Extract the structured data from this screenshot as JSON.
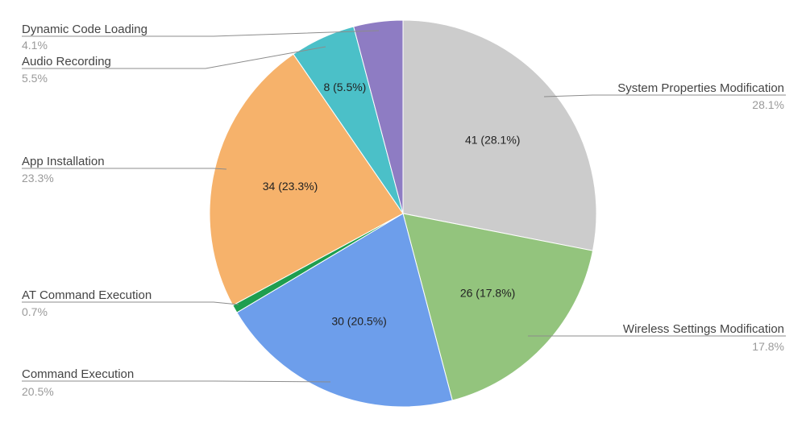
{
  "chart_data": {
    "type": "pie",
    "title": "",
    "slices": [
      {
        "name": "System Properties Modification",
        "value": 41,
        "percent": "28.1%",
        "data_label": "41 (28.1%)",
        "color": "#cccccc"
      },
      {
        "name": "Wireless Settings Modification",
        "value": 26,
        "percent": "17.8%",
        "data_label": "26 (17.8%)",
        "color": "#93c47d"
      },
      {
        "name": "Command Execution",
        "value": 30,
        "percent": "20.5%",
        "data_label": "30 (20.5%)",
        "color": "#6d9eeb"
      },
      {
        "name": "AT Command Execution",
        "value": 1,
        "percent": "0.7%",
        "data_label": "",
        "color": "#1e9e4f"
      },
      {
        "name": "App Installation",
        "value": 34,
        "percent": "23.3%",
        "data_label": "34 (23.3%)",
        "color": "#f6b26b"
      },
      {
        "name": "Audio Recording",
        "value": 8,
        "percent": "5.5%",
        "data_label": "8 (5.5%)",
        "color": "#4bc0c8"
      },
      {
        "name": "Dynamic Code Loading",
        "value": 6,
        "percent": "4.1%",
        "data_label": "",
        "color": "#8e7cc3"
      }
    ],
    "start": "12 o'clock",
    "direction": "clockwise",
    "legend": "callout labels beside slices"
  }
}
